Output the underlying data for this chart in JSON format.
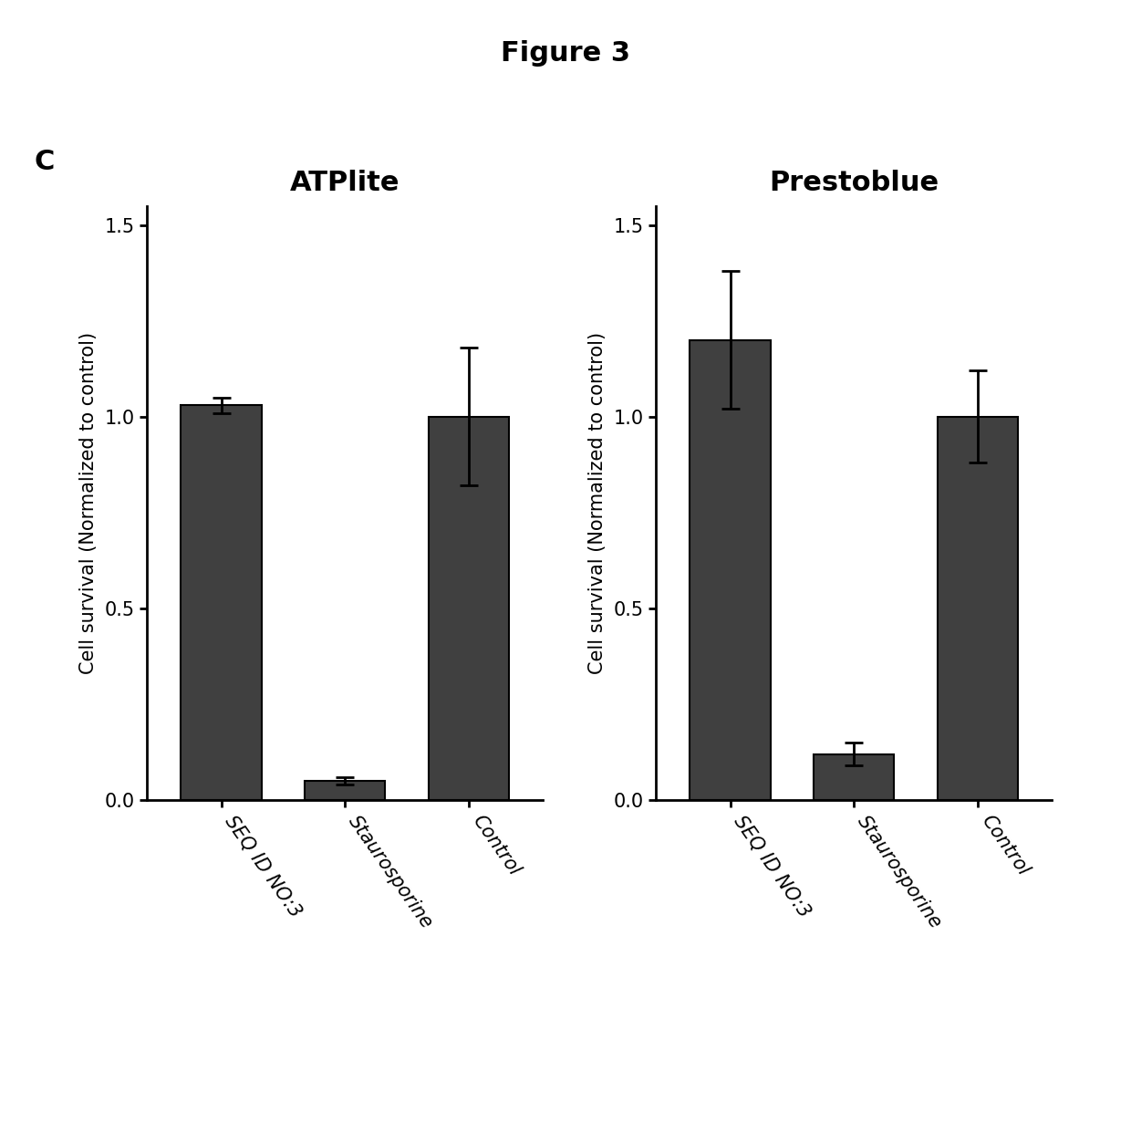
{
  "figure_title": "Figure 3",
  "panel_label": "C",
  "left_chart": {
    "title": "ATPlite",
    "categories": [
      "SEQ ID NO:3",
      "Staurosporine",
      "Control"
    ],
    "values": [
      1.03,
      0.05,
      1.0
    ],
    "errors": [
      0.02,
      0.01,
      0.18
    ],
    "ylabel": "Cell survival (Normalized to control)",
    "ylim": [
      0,
      1.55
    ],
    "yticks": [
      0.0,
      0.5,
      1.0,
      1.5
    ]
  },
  "right_chart": {
    "title": "Prestoblue",
    "categories": [
      "SEQ ID NO:3",
      "Staurosporine",
      "Control"
    ],
    "values": [
      1.2,
      0.12,
      1.0
    ],
    "errors": [
      0.18,
      0.03,
      0.12
    ],
    "ylabel": "Cell survival (Normalized to control)",
    "ylim": [
      0,
      1.55
    ],
    "yticks": [
      0.0,
      0.5,
      1.0,
      1.5
    ]
  },
  "bar_color": "#404040",
  "bar_edge_color": "#000000",
  "error_color": "#000000",
  "background_color": "#ffffff",
  "chart_title_fontsize": 22,
  "axis_label_fontsize": 15,
  "tick_label_fontsize": 15,
  "ytick_label_fontsize": 15,
  "panel_label_fontsize": 22,
  "figure_title_fontsize": 22,
  "bar_width": 0.65
}
